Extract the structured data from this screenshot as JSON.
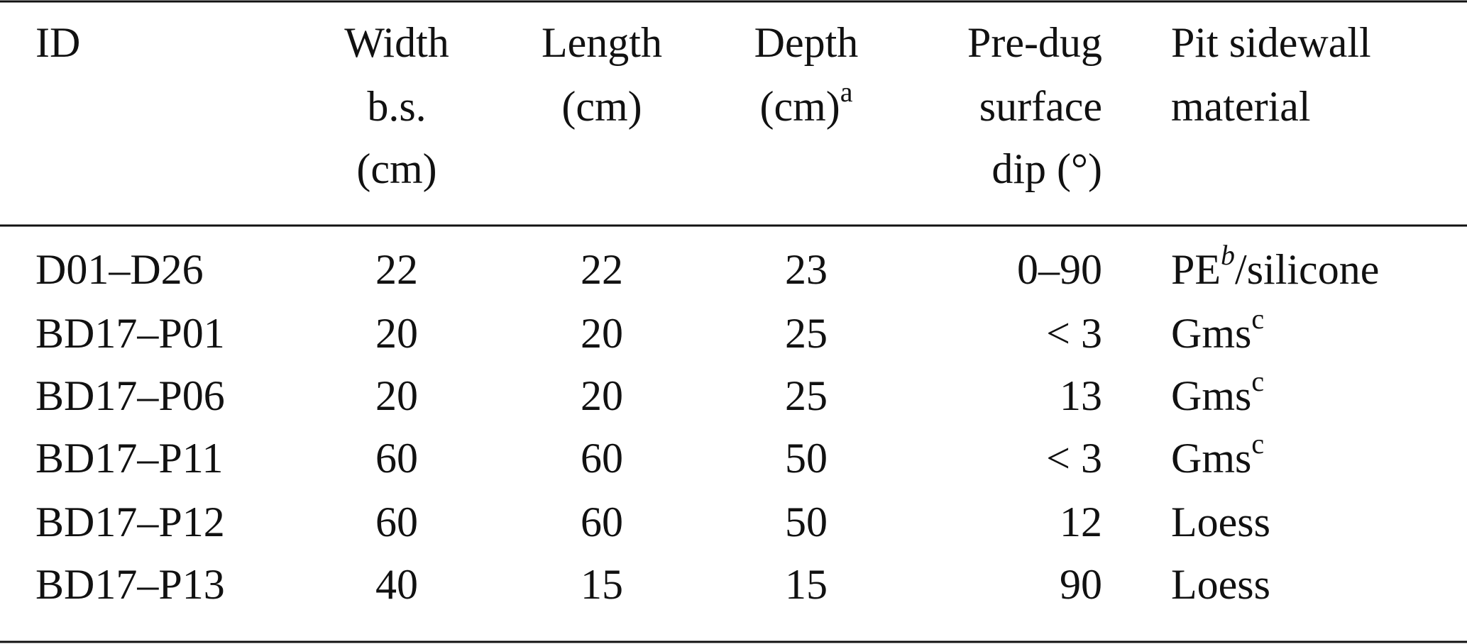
{
  "table": {
    "header": [
      [
        "ID"
      ],
      [
        "Width",
        "b.s.",
        "(cm)"
      ],
      [
        "Length",
        "(cm)"
      ],
      [
        "Depth",
        {
          "text": "(cm)",
          "sup": "a"
        }
      ],
      [
        "Pre-dug",
        "surface",
        "dip (°)"
      ],
      [
        "Pit sidewall",
        "material"
      ]
    ],
    "rows": [
      [
        "D01–D26",
        22,
        22,
        23,
        "0–90",
        {
          "text": "PE",
          "sup": "b",
          "sup_italic": true,
          "rest": "/silicone"
        }
      ],
      [
        "BD17–P01",
        20,
        20,
        25,
        "< 3",
        {
          "text": "Gms",
          "sup": "c"
        }
      ],
      [
        "BD17–P06",
        20,
        20,
        25,
        13,
        {
          "text": "Gms",
          "sup": "c"
        }
      ],
      [
        "BD17–P11",
        60,
        60,
        50,
        "< 3",
        {
          "text": "Gms",
          "sup": "c"
        }
      ],
      [
        "BD17–P12",
        60,
        60,
        50,
        12,
        "Loess"
      ],
      [
        "BD17–P13",
        40,
        15,
        15,
        90,
        "Loess"
      ]
    ]
  }
}
